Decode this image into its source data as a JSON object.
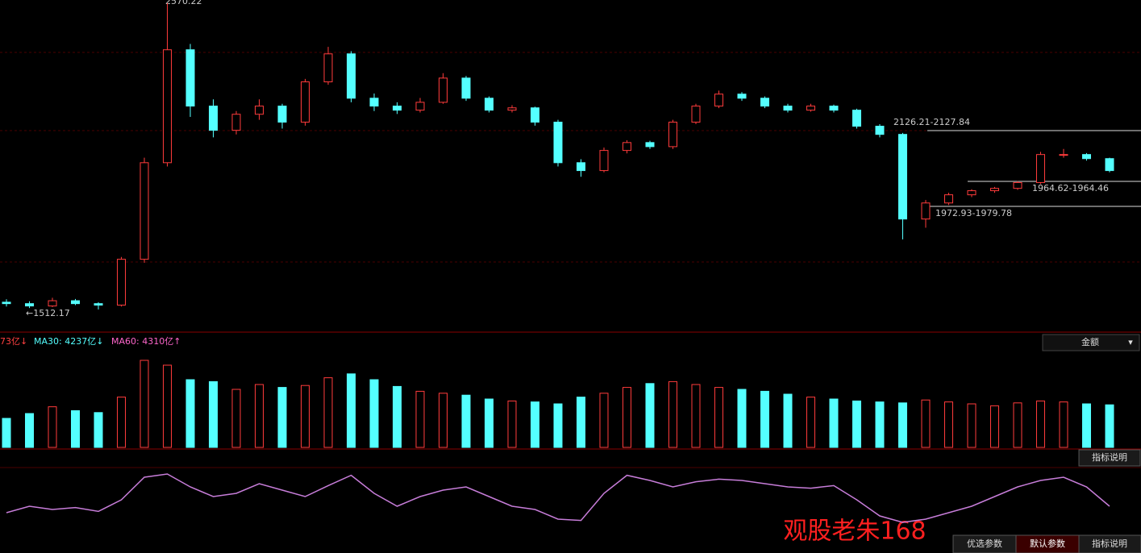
{
  "chart_data": {
    "type": "candlestick",
    "price_labels": {
      "top": "2570.22",
      "low": "←1512.17",
      "band1": "2126.21-2127.84",
      "band2": "1964.62-1964.46",
      "band3": "1972.93-1979.78"
    },
    "ylim": [
      1470,
      2575
    ],
    "up_color": "#ff3b3b",
    "down_color": "#54ffff",
    "candles": [
      {
        "o": 1545,
        "h": 1555,
        "l": 1530,
        "c": 1540
      },
      {
        "o": 1540,
        "h": 1548,
        "l": 1525,
        "c": 1532
      },
      {
        "o": 1532,
        "h": 1560,
        "l": 1528,
        "c": 1550
      },
      {
        "o": 1550,
        "h": 1556,
        "l": 1535,
        "c": 1540
      },
      {
        "o": 1540,
        "h": 1545,
        "l": 1520,
        "c": 1535
      },
      {
        "o": 1535,
        "h": 1700,
        "l": 1530,
        "c": 1692
      },
      {
        "o": 1692,
        "h": 2040,
        "l": 1680,
        "c": 2023
      },
      {
        "o": 2023,
        "h": 2570,
        "l": 2010,
        "c": 2410
      },
      {
        "o": 2410,
        "h": 2430,
        "l": 2180,
        "c": 2217
      },
      {
        "o": 2217,
        "h": 2240,
        "l": 2110,
        "c": 2134
      },
      {
        "o": 2134,
        "h": 2200,
        "l": 2120,
        "c": 2189
      },
      {
        "o": 2189,
        "h": 2240,
        "l": 2170,
        "c": 2217
      },
      {
        "o": 2217,
        "h": 2225,
        "l": 2140,
        "c": 2162
      },
      {
        "o": 2162,
        "h": 2310,
        "l": 2150,
        "c": 2300
      },
      {
        "o": 2300,
        "h": 2420,
        "l": 2290,
        "c": 2396
      },
      {
        "o": 2396,
        "h": 2405,
        "l": 2230,
        "c": 2244
      },
      {
        "o": 2244,
        "h": 2260,
        "l": 2200,
        "c": 2217
      },
      {
        "o": 2217,
        "h": 2230,
        "l": 2190,
        "c": 2203
      },
      {
        "o": 2203,
        "h": 2245,
        "l": 2195,
        "c": 2230
      },
      {
        "o": 2230,
        "h": 2330,
        "l": 2225,
        "c": 2313
      },
      {
        "o": 2313,
        "h": 2320,
        "l": 2235,
        "c": 2244
      },
      {
        "o": 2244,
        "h": 2250,
        "l": 2195,
        "c": 2203
      },
      {
        "o": 2203,
        "h": 2220,
        "l": 2195,
        "c": 2211
      },
      {
        "o": 2211,
        "h": 2215,
        "l": 2150,
        "c": 2162
      },
      {
        "o": 2162,
        "h": 2170,
        "l": 2010,
        "c": 2023
      },
      {
        "o": 2023,
        "h": 2035,
        "l": 1975,
        "c": 1996
      },
      {
        "o": 1996,
        "h": 2075,
        "l": 1990,
        "c": 2065
      },
      {
        "o": 2065,
        "h": 2100,
        "l": 2055,
        "c": 2092
      },
      {
        "o": 2092,
        "h": 2098,
        "l": 2070,
        "c": 2078
      },
      {
        "o": 2078,
        "h": 2170,
        "l": 2070,
        "c": 2162
      },
      {
        "o": 2162,
        "h": 2225,
        "l": 2155,
        "c": 2217
      },
      {
        "o": 2217,
        "h": 2270,
        "l": 2210,
        "c": 2258
      },
      {
        "o": 2258,
        "h": 2265,
        "l": 2235,
        "c": 2244
      },
      {
        "o": 2244,
        "h": 2250,
        "l": 2210,
        "c": 2217
      },
      {
        "o": 2217,
        "h": 2225,
        "l": 2195,
        "c": 2203
      },
      {
        "o": 2203,
        "h": 2225,
        "l": 2198,
        "c": 2217
      },
      {
        "o": 2217,
        "h": 2222,
        "l": 2195,
        "c": 2203
      },
      {
        "o": 2203,
        "h": 2208,
        "l": 2140,
        "c": 2148
      },
      {
        "o": 2148,
        "h": 2155,
        "l": 2110,
        "c": 2120
      },
      {
        "o": 2120,
        "h": 2125,
        "l": 1760,
        "c": 1830
      },
      {
        "o": 1830,
        "h": 1895,
        "l": 1800,
        "c": 1885
      },
      {
        "o": 1885,
        "h": 1920,
        "l": 1878,
        "c": 1913
      },
      {
        "o": 1913,
        "h": 1932,
        "l": 1905,
        "c": 1927
      },
      {
        "o": 1927,
        "h": 1940,
        "l": 1920,
        "c": 1935
      },
      {
        "o": 1935,
        "h": 1960,
        "l": 1930,
        "c": 1955
      },
      {
        "o": 1955,
        "h": 2060,
        "l": 1950,
        "c": 2051
      },
      {
        "o": 2051,
        "h": 2070,
        "l": 2040,
        "c": 2051
      },
      {
        "o": 2051,
        "h": 2056,
        "l": 2030,
        "c": 2037
      },
      {
        "o": 2037,
        "h": 2040,
        "l": 1990,
        "c": 1996
      }
    ],
    "volume": {
      "header": [
        "73亿↓",
        "MA30: 4237亿↓",
        "MA60: 4310亿↑"
      ],
      "selector": "金额",
      "ylim": [
        0,
        10000
      ],
      "values": [
        3000,
        3500,
        4200,
        3800,
        3600,
        5200,
        9000,
        8500,
        7000,
        6800,
        6000,
        6500,
        6200,
        6400,
        7200,
        7600,
        7000,
        6300,
        5800,
        5600,
        5400,
        5000,
        4800,
        4700,
        4500,
        5200,
        5600,
        6200,
        6600,
        6800,
        6500,
        6200,
        6000,
        5800,
        5500,
        5200,
        5000,
        4800,
        4700,
        4600,
        4900,
        4700,
        4500,
        4300,
        4600,
        4800,
        4700,
        4500,
        4400
      ]
    },
    "indicator": {
      "button": "指标说明",
      "ylim": [
        0,
        100
      ],
      "color": "#c77dd9",
      "values": [
        30,
        40,
        35,
        38,
        32,
        50,
        85,
        90,
        70,
        55,
        60,
        75,
        65,
        55,
        72,
        88,
        60,
        40,
        55,
        65,
        70,
        55,
        40,
        35,
        20,
        18,
        60,
        88,
        80,
        70,
        78,
        82,
        80,
        75,
        70,
        68,
        72,
        50,
        25,
        15,
        20,
        30,
        40,
        55,
        70,
        80,
        85,
        70,
        40
      ]
    },
    "watermark": "观股老朱168",
    "buttons": [
      "优选参数",
      "默认参数",
      "指标说明"
    ]
  }
}
